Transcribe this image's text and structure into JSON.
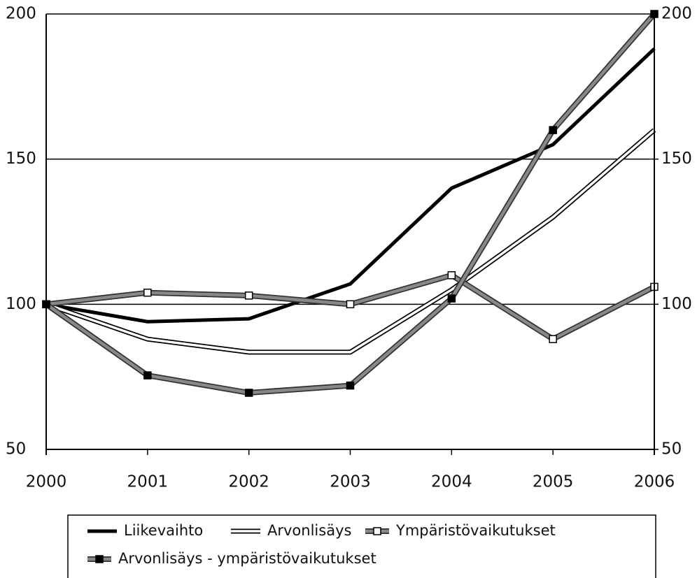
{
  "chart_data": {
    "type": "line",
    "categories": [
      "2000",
      "2001",
      "2002",
      "2003",
      "2004",
      "2005",
      "2006"
    ],
    "ylim": [
      50,
      200
    ],
    "yticks": [
      50,
      100,
      150,
      200
    ],
    "y2lim": [
      50,
      200
    ],
    "y2ticks": [
      50,
      100,
      150,
      200
    ],
    "grid": true,
    "legend": "bottom",
    "series": [
      {
        "name": "Liikevaihto",
        "color": "#000000",
        "style": "thick",
        "values": [
          100,
          94,
          95,
          107,
          140,
          155,
          188
        ]
      },
      {
        "name": "Arvonlisäys",
        "color": "#ffffff",
        "style": "outline",
        "values": [
          100,
          88,
          83.5,
          83.5,
          105,
          130,
          160
        ]
      },
      {
        "name": "Ympäristövaikutukset",
        "color": "#888888",
        "style": "open-square",
        "values": [
          100,
          104,
          103,
          100,
          110,
          88,
          106
        ]
      },
      {
        "name": "Arvonlisäys - ympäristövaikutukset",
        "color": "#888888",
        "style": "filled-square",
        "values": [
          100,
          75.5,
          69.5,
          72,
          102,
          160,
          200
        ]
      }
    ]
  }
}
